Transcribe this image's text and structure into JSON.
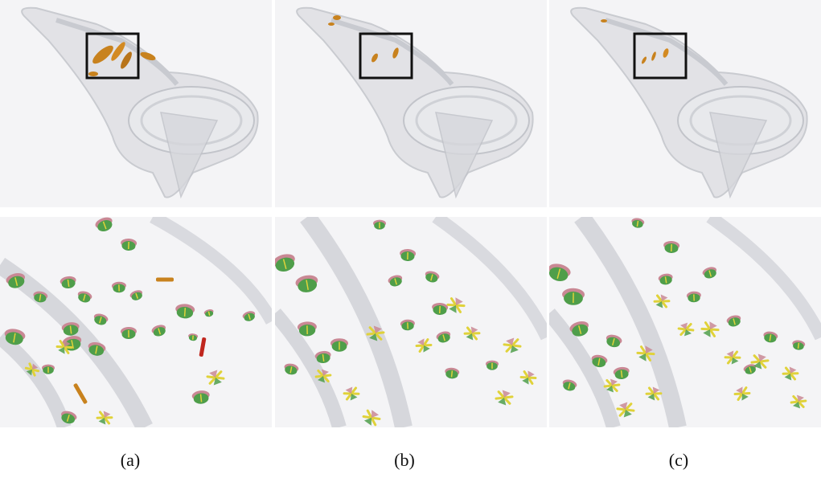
{
  "figure": {
    "subfigures": [
      {
        "label": "(a)"
      },
      {
        "label": "(b)"
      },
      {
        "label": "(c)"
      }
    ]
  },
  "colors": {
    "background": "#f4f4f6",
    "spoon_fill": "#dfe0e4",
    "spoon_edge": "#c2c4ca",
    "inset_box": "#111111",
    "glyph_orange": "#c8821e",
    "glyph_green": "#4f9e4a",
    "glyph_pink": "#c98894",
    "glyph_yellow": "#e0d23a",
    "glyph_red": "#c0261e"
  },
  "icons": {
    "overview": "transparent-spoon-model-icon",
    "detail": "tensor-glyph-field-icon"
  }
}
